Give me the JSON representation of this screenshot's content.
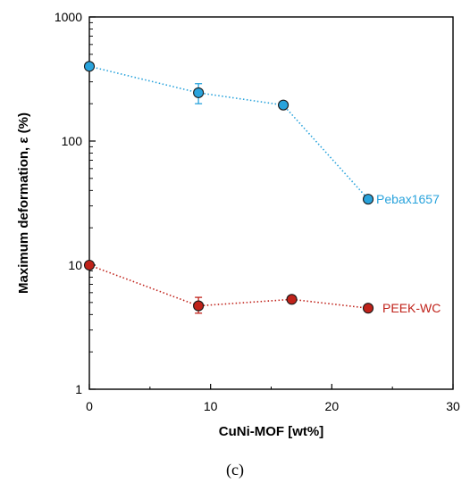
{
  "chart_data": {
    "type": "scatter",
    "xlabel": "CuNi-MOF [wt%]",
    "ylabel": "Maximum deformation, ε (%)",
    "xlim": [
      0,
      30
    ],
    "ylim": [
      1,
      1000
    ],
    "yscale": "log",
    "x_ticks": [
      "0",
      "10",
      "20",
      "30"
    ],
    "y_ticks": [
      "1",
      "10",
      "100",
      "1000"
    ],
    "grid": false,
    "series": [
      {
        "name": "Pebax1657",
        "color": "#29a3dc",
        "line_style": "dotted",
        "points": [
          {
            "x": 0,
            "y": 400
          },
          {
            "x": 9,
            "y": 245,
            "err_low": 200,
            "err_high": 290
          },
          {
            "x": 16,
            "y": 195
          },
          {
            "x": 23,
            "y": 34
          }
        ]
      },
      {
        "name": "PEEK-WC",
        "color": "#c0221a",
        "line_style": "dotted",
        "points": [
          {
            "x": 0,
            "y": 10
          },
          {
            "x": 9,
            "y": 4.7,
            "err_low": 4.1,
            "err_high": 5.5
          },
          {
            "x": 16.7,
            "y": 5.3
          },
          {
            "x": 23,
            "y": 4.5
          }
        ]
      }
    ],
    "panel_label": "(c)"
  }
}
